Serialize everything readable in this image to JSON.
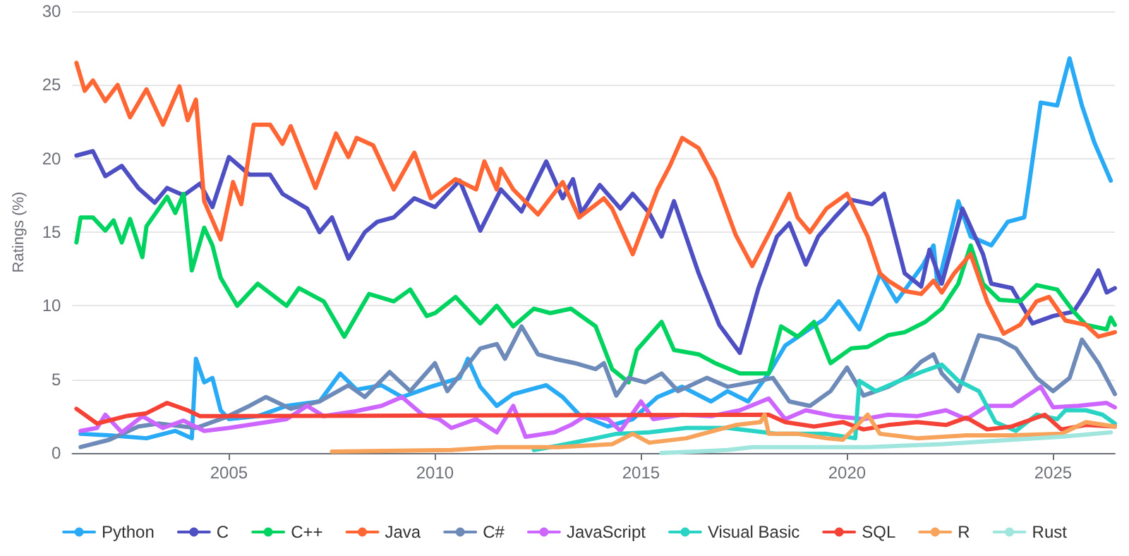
{
  "chart_data": {
    "type": "line",
    "ylabel": "Ratings (%)",
    "xlim": [
      2001.2,
      2026.5
    ],
    "xticks": [
      2005,
      2010,
      2015,
      2020,
      2025
    ],
    "ylim": [
      0,
      30
    ],
    "yticks": [
      0,
      5,
      10,
      15,
      20,
      25,
      30
    ],
    "grid": "y",
    "legend": "bottom",
    "marker": "none",
    "line_style": "solid",
    "series": [
      {
        "name": "Python",
        "color": "#29aaf4",
        "x": [
          2001.4,
          2002.1,
          2003.0,
          2003.7,
          2004.1,
          2004.2,
          2004.4,
          2004.6,
          2004.8,
          2005.0,
          2005.7,
          2006.4,
          2007.2,
          2007.7,
          2008.1,
          2008.7,
          2009.2,
          2009.9,
          2010.6,
          2010.8,
          2011.1,
          2011.5,
          2011.9,
          2012.7,
          2013.1,
          2013.5,
          2014.2,
          2014.8,
          2015.4,
          2016.0,
          2016.7,
          2017.1,
          2017.6,
          2018.1,
          2018.5,
          2019.45,
          2019.8,
          2020.3,
          2020.8,
          2021.2,
          2021.85,
          2022.1,
          2022.2,
          2022.7,
          2023.0,
          2023.5,
          2023.9,
          2024.3,
          2024.4,
          2024.7,
          2025.1,
          2025.4,
          2025.7,
          2026.0,
          2026.4
        ],
        "values": [
          1.3,
          1.2,
          1.0,
          1.5,
          1.0,
          6.4,
          4.8,
          5.1,
          2.9,
          2.3,
          2.5,
          3.2,
          3.5,
          5.4,
          4.3,
          4.6,
          3.8,
          4.5,
          5.1,
          6.4,
          4.5,
          3.2,
          4.0,
          4.6,
          3.8,
          2.6,
          1.8,
          2.3,
          3.8,
          4.5,
          3.5,
          4.2,
          3.5,
          5.4,
          7.3,
          9.1,
          10.3,
          8.4,
          12.2,
          10.3,
          12.8,
          14.1,
          11.3,
          17.1,
          14.7,
          14.1,
          15.7,
          16.0,
          17.9,
          23.8,
          23.6,
          26.8,
          23.6,
          21.1,
          18.5
        ]
      },
      {
        "name": "C",
        "color": "#4f4fc4",
        "x": [
          2001.3,
          2001.7,
          2002.0,
          2002.4,
          2002.8,
          2003.2,
          2003.5,
          2003.9,
          2004.3,
          2004.6,
          2005.0,
          2005.5,
          2006.0,
          2006.3,
          2006.9,
          2007.2,
          2007.5,
          2007.9,
          2008.3,
          2008.6,
          2009.0,
          2009.5,
          2010.0,
          2010.6,
          2011.1,
          2011.6,
          2012.1,
          2012.7,
          2013.1,
          2013.35,
          2013.55,
          2014.0,
          2014.5,
          2014.8,
          2015.2,
          2015.5,
          2015.8,
          2016.4,
          2016.9,
          2017.4,
          2017.85,
          2018.3,
          2018.6,
          2019.0,
          2019.3,
          2019.7,
          2020.1,
          2020.6,
          2020.9,
          2021.4,
          2021.8,
          2022.0,
          2022.3,
          2022.8,
          2023.3,
          2023.5,
          2024.0,
          2024.5,
          2025.0,
          2025.5,
          2025.8,
          2026.1,
          2026.3,
          2026.5
        ],
        "values": [
          20.2,
          20.5,
          18.8,
          19.5,
          18.0,
          17.0,
          18.0,
          17.5,
          18.3,
          16.7,
          20.1,
          18.9,
          18.9,
          17.6,
          16.6,
          15.0,
          16.0,
          13.2,
          15.0,
          15.7,
          16.0,
          17.3,
          16.7,
          18.5,
          15.1,
          17.9,
          16.4,
          19.8,
          17.3,
          18.6,
          16.3,
          18.2,
          16.6,
          17.6,
          16.3,
          14.7,
          17.1,
          12.2,
          8.7,
          6.8,
          11.2,
          14.7,
          15.6,
          12.8,
          14.7,
          16.0,
          17.2,
          16.9,
          17.6,
          12.2,
          11.3,
          13.8,
          11.5,
          16.6,
          13.5,
          11.5,
          11.2,
          8.8,
          9.3,
          9.6,
          10.9,
          12.4,
          10.9,
          11.2
        ]
      },
      {
        "name": "C++",
        "color": "#00d35f",
        "x": [
          2001.3,
          2001.4,
          2001.7,
          2002.0,
          2002.2,
          2002.4,
          2002.6,
          2002.9,
          2003.0,
          2003.5,
          2003.7,
          2003.9,
          2004.1,
          2004.4,
          2004.6,
          2004.8,
          2005.2,
          2005.7,
          2006.4,
          2006.7,
          2007.3,
          2007.8,
          2008.4,
          2009.0,
          2009.4,
          2009.8,
          2010.0,
          2010.5,
          2011.1,
          2011.5,
          2011.9,
          2012.4,
          2012.8,
          2013.3,
          2013.9,
          2014.3,
          2014.7,
          2014.9,
          2015.5,
          2015.8,
          2016.4,
          2016.8,
          2017.4,
          2018.1,
          2018.4,
          2018.8,
          2019.2,
          2019.6,
          2020.1,
          2020.5,
          2021.0,
          2021.4,
          2021.9,
          2022.3,
          2022.7,
          2023.0,
          2023.3,
          2023.7,
          2024.2,
          2024.6,
          2025.1,
          2025.5,
          2025.8,
          2026.3,
          2026.4,
          2026.5
        ],
        "values": [
          14.3,
          16.0,
          16.0,
          15.1,
          15.8,
          14.3,
          15.9,
          13.3,
          15.4,
          17.4,
          16.3,
          17.6,
          12.4,
          15.3,
          14.1,
          11.9,
          10.0,
          11.5,
          10.0,
          11.2,
          10.3,
          7.9,
          10.8,
          10.3,
          11.1,
          9.3,
          9.5,
          10.6,
          8.8,
          10.0,
          8.6,
          9.8,
          9.5,
          9.8,
          8.6,
          5.7,
          4.8,
          7.0,
          8.9,
          7.0,
          6.7,
          6.1,
          5.4,
          5.4,
          8.6,
          7.9,
          8.9,
          6.1,
          7.1,
          7.2,
          8.0,
          8.2,
          8.9,
          9.8,
          11.5,
          14.1,
          11.5,
          10.4,
          10.3,
          11.4,
          11.1,
          9.6,
          8.7,
          8.4,
          9.2,
          8.7
        ]
      },
      {
        "name": "Java",
        "color": "#ff6633",
        "x": [
          2001.3,
          2001.5,
          2001.7,
          2002.0,
          2002.3,
          2002.6,
          2003.0,
          2003.4,
          2003.8,
          2004.0,
          2004.2,
          2004.4,
          2004.8,
          2005.1,
          2005.3,
          2005.6,
          2006.0,
          2006.3,
          2006.5,
          2007.1,
          2007.6,
          2007.9,
          2008.1,
          2008.5,
          2009.0,
          2009.5,
          2009.9,
          2010.5,
          2011.0,
          2011.2,
          2011.5,
          2011.6,
          2011.9,
          2012.5,
          2013.1,
          2013.5,
          2014.1,
          2014.3,
          2014.8,
          2015.1,
          2015.4,
          2015.7,
          2016.0,
          2016.4,
          2016.8,
          2017.3,
          2017.7,
          2018.2,
          2018.6,
          2018.8,
          2019.1,
          2019.5,
          2020.0,
          2020.5,
          2020.8,
          2021.0,
          2021.4,
          2021.8,
          2022.1,
          2022.3,
          2022.6,
          2023.0,
          2023.4,
          2023.8,
          2024.2,
          2024.6,
          2024.9,
          2025.3,
          2025.8,
          2026.1,
          2026.5
        ],
        "values": [
          26.5,
          24.6,
          25.3,
          23.9,
          25.0,
          22.8,
          24.7,
          22.3,
          24.9,
          22.6,
          24.0,
          17.1,
          14.5,
          18.4,
          16.9,
          22.3,
          22.3,
          21.0,
          22.2,
          18.0,
          21.7,
          20.1,
          21.4,
          20.9,
          17.9,
          20.4,
          17.3,
          18.6,
          17.9,
          19.8,
          17.9,
          19.3,
          17.9,
          16.2,
          18.4,
          16.0,
          17.3,
          16.6,
          13.5,
          15.7,
          17.9,
          19.5,
          21.4,
          20.7,
          18.6,
          14.8,
          12.7,
          15.4,
          17.6,
          16.0,
          15.0,
          16.6,
          17.6,
          14.7,
          12.2,
          11.7,
          11.0,
          10.8,
          11.7,
          10.9,
          12.2,
          13.5,
          10.3,
          8.1,
          8.7,
          10.3,
          10.6,
          9.0,
          8.7,
          7.9,
          8.2
        ]
      },
      {
        "name": "C#",
        "color": "#6d8ab8",
        "x": [
          2001.4,
          2002.1,
          2002.8,
          2003.3,
          2004.2,
          2004.9,
          2005.5,
          2005.9,
          2006.5,
          2007.2,
          2007.9,
          2008.3,
          2008.9,
          2009.4,
          2010.0,
          2010.3,
          2011.1,
          2011.5,
          2011.7,
          2012.1,
          2012.5,
          2012.9,
          2013.4,
          2013.9,
          2014.1,
          2014.4,
          2014.7,
          2015.1,
          2015.5,
          2015.9,
          2016.6,
          2017.1,
          2017.7,
          2018.2,
          2018.6,
          2019.1,
          2019.6,
          2020.0,
          2020.4,
          2021.0,
          2021.4,
          2021.8,
          2022.1,
          2022.3,
          2022.7,
          2023.2,
          2023.7,
          2024.1,
          2024.6,
          2025.0,
          2025.4,
          2025.7,
          2026.1,
          2026.5
        ],
        "values": [
          0.4,
          0.9,
          1.8,
          2.0,
          1.7,
          2.4,
          3.2,
          3.8,
          3.0,
          3.5,
          4.6,
          3.8,
          5.5,
          4.2,
          6.1,
          4.2,
          7.1,
          7.4,
          6.4,
          8.6,
          6.7,
          6.4,
          6.1,
          5.7,
          6.1,
          3.9,
          5.1,
          4.8,
          5.4,
          4.2,
          5.1,
          4.5,
          4.8,
          5.1,
          3.5,
          3.2,
          4.2,
          5.8,
          3.9,
          4.5,
          5.1,
          6.2,
          6.7,
          5.4,
          4.2,
          8.0,
          7.7,
          7.1,
          5.1,
          4.2,
          5.1,
          7.7,
          6.1,
          4.0
        ]
      },
      {
        "name": "JavaScript",
        "color": "#cc66ff",
        "x": [
          2001.4,
          2001.8,
          2002.0,
          2002.4,
          2002.9,
          2003.4,
          2003.9,
          2004.4,
          2005.0,
          2005.7,
          2006.4,
          2006.9,
          2007.3,
          2008.0,
          2008.7,
          2009.2,
          2009.7,
          2010.1,
          2010.4,
          2011.0,
          2011.5,
          2011.9,
          2012.2,
          2012.9,
          2013.3,
          2013.7,
          2014.2,
          2014.5,
          2015.0,
          2015.3,
          2016.0,
          2016.7,
          2017.4,
          2018.1,
          2018.5,
          2019.0,
          2019.7,
          2020.4,
          2021.0,
          2021.7,
          2022.4,
          2022.9,
          2023.4,
          2024.0,
          2024.7,
          2025.0,
          2025.6,
          2026.3,
          2026.5
        ],
        "values": [
          1.5,
          1.7,
          2.6,
          1.4,
          2.5,
          1.7,
          2.2,
          1.5,
          1.7,
          2.0,
          2.3,
          3.2,
          2.5,
          2.8,
          3.2,
          3.8,
          2.6,
          2.3,
          1.7,
          2.3,
          1.4,
          3.2,
          1.1,
          1.4,
          1.9,
          2.6,
          2.3,
          1.5,
          3.5,
          2.3,
          2.6,
          2.5,
          2.9,
          3.7,
          2.3,
          2.9,
          2.5,
          2.3,
          2.6,
          2.5,
          2.9,
          2.3,
          3.2,
          3.2,
          4.5,
          3.1,
          3.2,
          3.4,
          3.1
        ]
      },
      {
        "name": "Visual Basic",
        "color": "#2ad4c4",
        "x": [
          2012.4,
          2013.0,
          2013.9,
          2014.4,
          2015.2,
          2016.1,
          2017.1,
          2018.0,
          2018.3,
          2019.5,
          2020.2,
          2020.3,
          2020.7,
          2021.1,
          2021.8,
          2022.3,
          2022.7,
          2023.2,
          2023.6,
          2024.1,
          2024.6,
          2025.1,
          2025.3,
          2025.8,
          2026.2,
          2026.5
        ],
        "values": [
          0.2,
          0.5,
          1.0,
          1.3,
          1.4,
          1.7,
          1.7,
          1.4,
          1.3,
          1.3,
          1.0,
          4.9,
          4.2,
          4.7,
          5.5,
          6.0,
          4.9,
          4.2,
          2.1,
          1.5,
          2.6,
          2.3,
          2.9,
          2.9,
          2.6,
          2.0
        ]
      },
      {
        "name": "SQL",
        "color": "#f44336",
        "x": [
          2001.3,
          2001.8,
          2002.5,
          2003.0,
          2003.5,
          2004.0,
          2004.3,
          2018.1,
          2018.5,
          2019.2,
          2019.9,
          2020.4,
          2021.0,
          2021.7,
          2022.4,
          2022.9,
          2023.4,
          2024.0,
          2024.8,
          2025.2,
          2025.8,
          2026.5
        ],
        "values": [
          3.0,
          2.0,
          2.5,
          2.7,
          3.4,
          2.9,
          2.5,
          2.6,
          2.1,
          1.8,
          2.1,
          1.6,
          1.9,
          2.1,
          1.9,
          2.4,
          1.6,
          1.8,
          2.6,
          1.6,
          1.9,
          1.8
        ]
      },
      {
        "name": "R",
        "color": "#f7a35c",
        "x": [
          2007.5,
          2010.4,
          2011.5,
          2013.0,
          2014.3,
          2014.8,
          2015.2,
          2016.1,
          2017.3,
          2017.9,
          2018.0,
          2018.1,
          2018.8,
          2019.5,
          2019.9,
          2020.5,
          2020.8,
          2021.7,
          2022.9,
          2024.0,
          2025.2,
          2025.8,
          2026.5
        ],
        "values": [
          0.1,
          0.2,
          0.4,
          0.4,
          0.6,
          1.3,
          0.7,
          1.0,
          1.9,
          2.1,
          2.6,
          1.3,
          1.3,
          1.0,
          0.9,
          2.6,
          1.3,
          1.0,
          1.2,
          1.2,
          1.3,
          2.1,
          1.8
        ]
      },
      {
        "name": "Rust",
        "color": "#a0e6de",
        "x": [
          2015.5,
          2017.1,
          2017.7,
          2018.8,
          2020.5,
          2022.3,
          2024.0,
          2025.2,
          2026.4
        ],
        "values": [
          0.0,
          0.2,
          0.4,
          0.4,
          0.4,
          0.6,
          0.9,
          1.1,
          1.4
        ]
      }
    ]
  }
}
